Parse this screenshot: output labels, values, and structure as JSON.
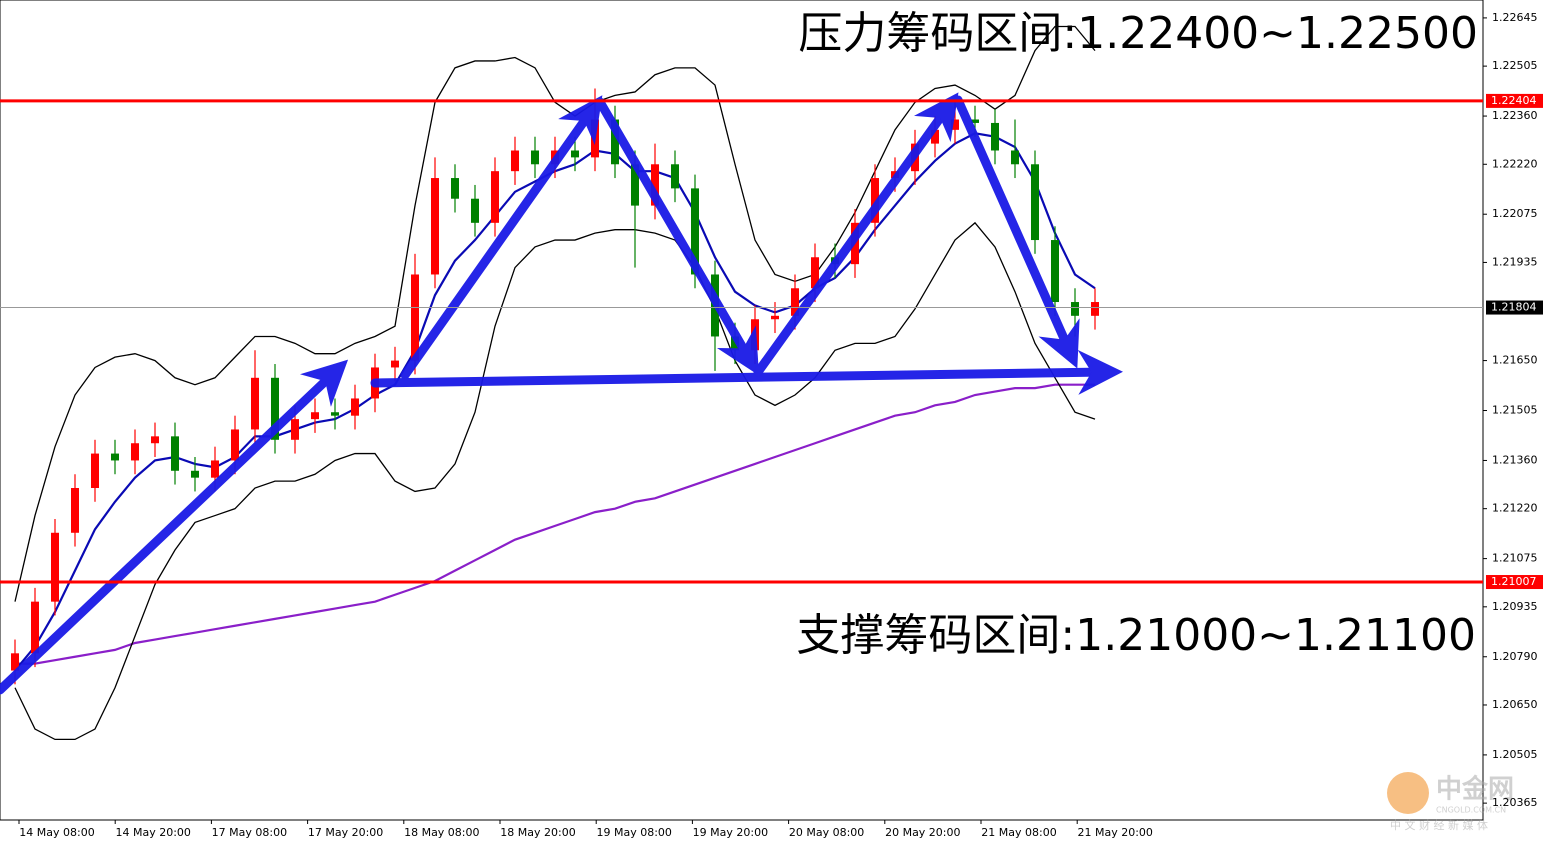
{
  "chart_data": {
    "type": "candlestick",
    "annotations": [
      "压力筹码区间:1.22400~1.22500",
      "支撑筹码区间:1.21000~1.21100"
    ],
    "up_color": "#ff0000",
    "down_color": "#008000",
    "ylim": [
      1.20316,
      1.22697
    ],
    "yticks": [
      1.22645,
      1.22505,
      {
        "value": 1.2236,
        "label": "1.22360"
      },
      {
        "value": 1.2222,
        "label": "1.22220"
      },
      1.22075,
      1.21935,
      {
        "value": 1.2165,
        "label": "1.21650"
      },
      1.21505,
      {
        "value": 1.2136,
        "label": "1.21360"
      },
      {
        "value": 1.2122,
        "label": "1.21220"
      },
      1.21075,
      1.20935,
      {
        "value": 1.2079,
        "label": "1.20790"
      },
      {
        "value": 1.2065,
        "label": "1.20650"
      },
      1.20505,
      1.20365
    ],
    "xticks": [
      "14 May 08:00",
      "14 May 20:00",
      "17 May 08:00",
      "17 May 20:00",
      "18 May 08:00",
      "18 May 20:00",
      "19 May 08:00",
      "19 May 20:00",
      "20 May 08:00",
      "20 May 20:00",
      "21 May 08:00",
      "21 May 20:00"
    ],
    "open": [
      1.2075,
      1.208,
      1.2095,
      1.2115,
      1.2128,
      1.2138,
      1.2136,
      1.2141,
      1.2143,
      1.2133,
      1.2131,
      1.2136,
      1.2145,
      1.216,
      1.2142,
      1.2148,
      1.215,
      1.2149,
      1.2154,
      1.2163,
      1.2165,
      1.219,
      1.2218,
      1.2212,
      1.2205,
      1.222,
      1.2226,
      1.2222,
      1.2226,
      1.2224,
      1.2235,
      1.2222,
      1.221,
      1.2222,
      1.2215,
      1.219,
      1.2172,
      1.2168,
      1.2177,
      1.2178,
      1.2186,
      1.2195,
      1.2193,
      1.2205,
      1.2218,
      1.222,
      1.2228,
      1.2232,
      1.2235,
      1.2234,
      1.2226,
      1.2222,
      1.22,
      1.2182,
      1.2178
    ],
    "high": [
      1.2084,
      1.2099,
      1.2119,
      1.2132,
      1.2142,
      1.2142,
      1.2145,
      1.2147,
      1.2147,
      1.2137,
      1.214,
      1.2149,
      1.2168,
      1.2164,
      1.2152,
      1.2154,
      1.2154,
      1.2158,
      1.2167,
      1.2169,
      1.2196,
      1.2224,
      1.2222,
      1.2216,
      1.2224,
      1.223,
      1.223,
      1.223,
      1.223,
      1.2244,
      1.2239,
      1.2226,
      1.2228,
      1.2226,
      1.2219,
      1.2194,
      1.2176,
      1.2181,
      1.2182,
      1.219,
      1.2199,
      1.2199,
      1.2209,
      1.2222,
      1.2224,
      1.2232,
      1.2236,
      1.224,
      1.2239,
      1.2238,
      1.2235,
      1.2226,
      1.2204,
      1.2186,
      1.2186
    ],
    "low": [
      1.2071,
      1.2076,
      1.2091,
      1.2111,
      1.2124,
      1.2132,
      1.2132,
      1.2137,
      1.2129,
      1.2127,
      1.2127,
      1.2132,
      1.2141,
      1.2138,
      1.2138,
      1.2144,
      1.2145,
      1.2145,
      1.215,
      1.2159,
      1.2161,
      1.2186,
      1.2208,
      1.2201,
      1.2201,
      1.2216,
      1.2218,
      1.2218,
      1.222,
      1.222,
      1.2218,
      1.2192,
      1.2206,
      1.2211,
      1.2186,
      1.2162,
      1.2164,
      1.2164,
      1.2173,
      1.2174,
      1.2182,
      1.2189,
      1.2189,
      1.2201,
      1.2214,
      1.2216,
      1.2224,
      1.2228,
      1.223,
      1.2222,
      1.2218,
      1.2196,
      1.2178,
      1.2172,
      1.2174
    ],
    "close": [
      1.208,
      1.2095,
      1.2115,
      1.2128,
      1.2138,
      1.2136,
      1.2141,
      1.2143,
      1.2133,
      1.2131,
      1.2136,
      1.2145,
      1.216,
      1.2142,
      1.2148,
      1.215,
      1.2149,
      1.2154,
      1.2163,
      1.2165,
      1.219,
      1.2218,
      1.2212,
      1.2205,
      1.222,
      1.2226,
      1.2222,
      1.2226,
      1.2224,
      1.2235,
      1.2222,
      1.221,
      1.2222,
      1.2215,
      1.219,
      1.2172,
      1.2168,
      1.2177,
      1.2178,
      1.2186,
      1.2195,
      1.2193,
      1.2205,
      1.2218,
      1.222,
      1.2228,
      1.2232,
      1.2235,
      1.2234,
      1.2226,
      1.2222,
      1.22,
      1.2182,
      1.2178,
      1.2182
    ],
    "series": [
      {
        "color": "#8a1fc9",
        "values": [
          1.2077,
          1.2077,
          1.2078,
          1.2079,
          1.208,
          1.2081,
          1.2083,
          1.2084,
          1.2085,
          1.2086,
          1.2087,
          1.2088,
          1.2089,
          1.209,
          1.2091,
          1.2092,
          1.2093,
          1.2094,
          1.2095,
          1.2097,
          1.2099,
          1.2101,
          1.2104,
          1.2107,
          1.211,
          1.2113,
          1.2115,
          1.2117,
          1.2119,
          1.2121,
          1.2122,
          1.2124,
          1.2125,
          1.2127,
          1.2129,
          1.2131,
          1.2133,
          1.2135,
          1.2137,
          1.2139,
          1.2141,
          1.2143,
          1.2145,
          1.2147,
          1.2149,
          1.215,
          1.2152,
          1.2153,
          1.2155,
          1.2156,
          1.2157,
          1.2157,
          1.2158,
          1.2158,
          1.2158
        ]
      },
      {
        "color": "#0a0ab4",
        "values": [
          1.2075,
          1.2082,
          1.2092,
          1.2104,
          1.2116,
          1.2124,
          1.2131,
          1.2136,
          1.2137,
          1.2135,
          1.2134,
          1.2137,
          1.2143,
          1.2143,
          1.2145,
          1.2147,
          1.2148,
          1.2151,
          1.2155,
          1.2158,
          1.2168,
          1.2184,
          1.2194,
          1.22,
          1.2207,
          1.2214,
          1.2217,
          1.222,
          1.2222,
          1.2226,
          1.2225,
          1.222,
          1.222,
          1.2218,
          1.2208,
          1.2195,
          1.2185,
          1.2181,
          1.2179,
          1.2181,
          1.2186,
          1.2189,
          1.2195,
          1.2203,
          1.221,
          1.2217,
          1.2223,
          1.2228,
          1.2231,
          1.223,
          1.2227,
          1.2217,
          1.2202,
          1.219,
          1.2186
        ]
      },
      {
        "color": "#000000",
        "values": [
          1.2095,
          1.212,
          1.214,
          1.2155,
          1.2163,
          1.2166,
          1.2167,
          1.2165,
          1.216,
          1.2158,
          1.216,
          1.2166,
          1.2172,
          1.2172,
          1.217,
          1.2167,
          1.2167,
          1.217,
          1.2172,
          1.2175,
          1.221,
          1.224,
          1.225,
          1.2252,
          1.2252,
          1.2253,
          1.225,
          1.224,
          1.2236,
          1.224,
          1.2242,
          1.2243,
          1.2248,
          1.225,
          1.225,
          1.2245,
          1.2222,
          1.22,
          1.219,
          1.2188,
          1.219,
          1.2198,
          1.2208,
          1.222,
          1.2232,
          1.224,
          1.2244,
          1.2245,
          1.2242,
          1.2238,
          1.2242,
          1.2255,
          1.2262,
          1.2262,
          1.2255
        ]
      },
      {
        "color": "#000000",
        "values": [
          1.207,
          1.2058,
          1.2055,
          1.2055,
          1.2058,
          1.207,
          1.2085,
          1.21,
          1.211,
          1.2118,
          1.212,
          1.2122,
          1.2128,
          1.213,
          1.213,
          1.2132,
          1.2136,
          1.2138,
          1.2138,
          1.213,
          1.2127,
          1.2128,
          1.2135,
          1.215,
          1.2175,
          1.2192,
          1.2198,
          1.22,
          1.22,
          1.2202,
          1.2203,
          1.2203,
          1.2202,
          1.22,
          1.2192,
          1.218,
          1.2165,
          1.2155,
          1.2152,
          1.2155,
          1.216,
          1.2168,
          1.217,
          1.217,
          1.2172,
          1.218,
          1.219,
          1.22,
          1.2205,
          1.2198,
          1.2185,
          1.217,
          1.216,
          1.215,
          1.2148
        ]
      }
    ],
    "levels": [
      {
        "value": 1.22404,
        "color": "#ff0000"
      },
      {
        "value": 1.21007,
        "color": "#ff0000"
      }
    ],
    "current_price": 1.21804
  },
  "watermark": {
    "logo": "中金网",
    "site": "CNGOLD.COM.CN",
    "slogan": "中 文 财 经 新 媒 体"
  }
}
